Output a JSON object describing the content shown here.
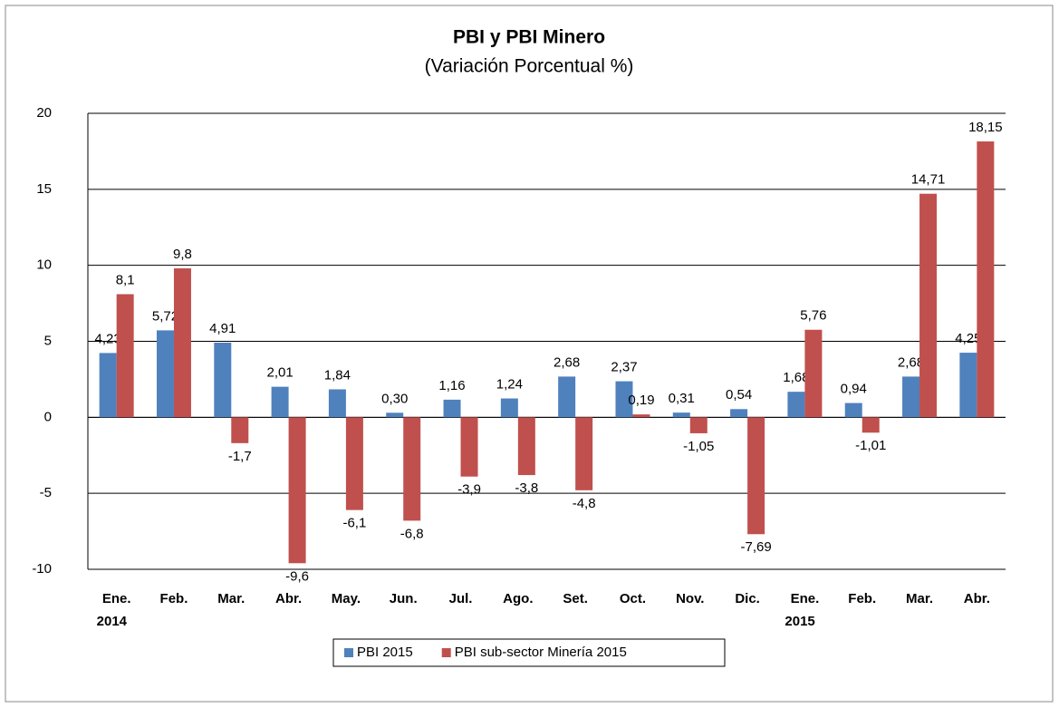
{
  "chart_data": {
    "type": "bar",
    "title": "PBI y PBI Minero",
    "subtitle": "(Variación Porcentual %)",
    "categories": [
      "Ene. 2014",
      "Feb.",
      "Mar.",
      "Abr.",
      "May.",
      "Jun.",
      "Jul.",
      "Ago.",
      "Set.",
      "Oct.",
      "Nov.",
      "Dic.",
      "Ene. 2015",
      "Feb.",
      "Mar.",
      "Abr."
    ],
    "series": [
      {
        "name": "PBI 2015",
        "color": "#4f81bd",
        "values": [
          4.23,
          5.72,
          4.91,
          2.01,
          1.84,
          0.3,
          1.16,
          1.24,
          2.68,
          2.37,
          0.31,
          0.54,
          1.68,
          0.94,
          2.68,
          4.25
        ],
        "value_labels": [
          "4,23",
          "5,72",
          "4,91",
          "2,01",
          "1,84",
          "0,30",
          "1,16",
          "1,24",
          "2,68",
          "2,37",
          "0,31",
          "0,54",
          "1,68",
          "0,94",
          "2,68",
          "4,25"
        ]
      },
      {
        "name": "PBI sub-sector Minería 2015",
        "color": "#c0504d",
        "values": [
          8.1,
          9.8,
          -1.7,
          -9.6,
          -6.1,
          -6.8,
          -3.9,
          -3.8,
          -4.8,
          0.19,
          -1.05,
          -7.69,
          5.76,
          -1.01,
          14.71,
          18.15
        ],
        "value_labels": [
          "8,1",
          "9,8",
          "-1,7",
          "-9,6",
          "-6,1",
          "-6,8",
          "-3,9",
          "-3,8",
          "-4,8",
          "0,19",
          "-1,05",
          "-7,69",
          "5,76",
          "-1,01",
          "14,71",
          "18,15"
        ]
      }
    ],
    "ylim": [
      -10,
      20
    ],
    "yticks": [
      -10,
      -5,
      0,
      5,
      10,
      15,
      20
    ],
    "grid": true,
    "legend": "bottom"
  }
}
